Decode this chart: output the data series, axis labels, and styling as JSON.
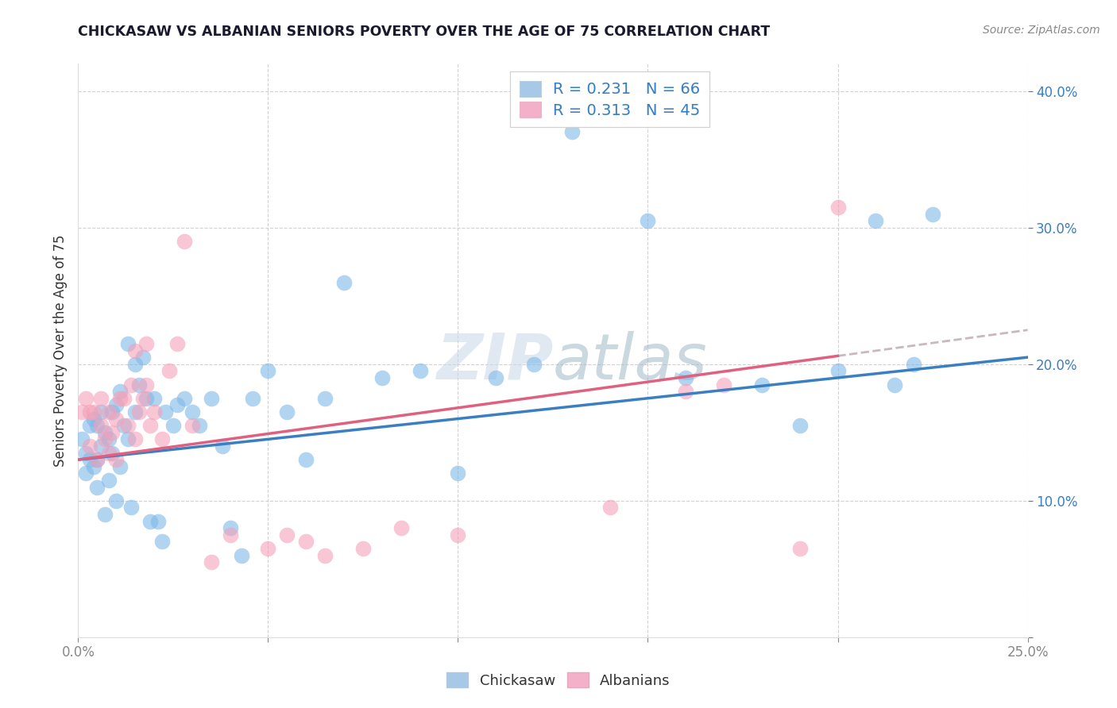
{
  "title": "CHICKASAW VS ALBANIAN SENIORS POVERTY OVER THE AGE OF 75 CORRELATION CHART",
  "source": "Source: ZipAtlas.com",
  "ylabel": "Seniors Poverty Over the Age of 75",
  "watermark": "ZIPatlas",
  "chickasaw_R": 0.231,
  "chickasaw_N": 66,
  "albanian_R": 0.313,
  "albanian_N": 45,
  "chickasaw_color": "#7db8e8",
  "albanian_color": "#f4a0b8",
  "trend_chickasaw_color": "#3a7fc1",
  "trend_albanian_color": "#e06080",
  "trend_dashed_color": "#c8b8c0",
  "xlim": [
    0.0,
    0.25
  ],
  "ylim": [
    0.0,
    0.42
  ],
  "chickasaw_x": [
    0.001,
    0.002,
    0.002,
    0.003,
    0.003,
    0.004,
    0.004,
    0.005,
    0.005,
    0.005,
    0.006,
    0.006,
    0.007,
    0.007,
    0.008,
    0.008,
    0.009,
    0.009,
    0.01,
    0.01,
    0.011,
    0.011,
    0.012,
    0.013,
    0.013,
    0.014,
    0.015,
    0.015,
    0.016,
    0.017,
    0.018,
    0.019,
    0.02,
    0.021,
    0.022,
    0.023,
    0.025,
    0.026,
    0.028,
    0.03,
    0.032,
    0.035,
    0.038,
    0.04,
    0.043,
    0.046,
    0.05,
    0.055,
    0.06,
    0.065,
    0.07,
    0.08,
    0.09,
    0.1,
    0.11,
    0.12,
    0.13,
    0.15,
    0.16,
    0.18,
    0.19,
    0.2,
    0.21,
    0.215,
    0.22,
    0.225
  ],
  "chickasaw_y": [
    0.145,
    0.12,
    0.135,
    0.13,
    0.155,
    0.125,
    0.16,
    0.11,
    0.13,
    0.155,
    0.14,
    0.165,
    0.09,
    0.15,
    0.115,
    0.145,
    0.135,
    0.165,
    0.1,
    0.17,
    0.125,
    0.18,
    0.155,
    0.145,
    0.215,
    0.095,
    0.165,
    0.2,
    0.185,
    0.205,
    0.175,
    0.085,
    0.175,
    0.085,
    0.07,
    0.165,
    0.155,
    0.17,
    0.175,
    0.165,
    0.155,
    0.175,
    0.14,
    0.08,
    0.06,
    0.175,
    0.195,
    0.165,
    0.13,
    0.175,
    0.26,
    0.19,
    0.195,
    0.12,
    0.19,
    0.2,
    0.37,
    0.305,
    0.19,
    0.185,
    0.155,
    0.195,
    0.305,
    0.185,
    0.2,
    0.31
  ],
  "albanian_x": [
    0.001,
    0.002,
    0.003,
    0.003,
    0.004,
    0.005,
    0.006,
    0.006,
    0.007,
    0.008,
    0.008,
    0.009,
    0.01,
    0.01,
    0.011,
    0.012,
    0.013,
    0.014,
    0.015,
    0.015,
    0.016,
    0.017,
    0.018,
    0.018,
    0.019,
    0.02,
    0.022,
    0.024,
    0.026,
    0.028,
    0.03,
    0.035,
    0.04,
    0.05,
    0.055,
    0.06,
    0.065,
    0.075,
    0.085,
    0.1,
    0.14,
    0.16,
    0.17,
    0.19,
    0.2
  ],
  "albanian_y": [
    0.165,
    0.175,
    0.14,
    0.165,
    0.165,
    0.13,
    0.155,
    0.175,
    0.145,
    0.135,
    0.165,
    0.15,
    0.13,
    0.16,
    0.175,
    0.175,
    0.155,
    0.185,
    0.145,
    0.21,
    0.165,
    0.175,
    0.185,
    0.215,
    0.155,
    0.165,
    0.145,
    0.195,
    0.215,
    0.29,
    0.155,
    0.055,
    0.075,
    0.065,
    0.075,
    0.07,
    0.06,
    0.065,
    0.08,
    0.075,
    0.095,
    0.18,
    0.185,
    0.065,
    0.315
  ],
  "trend_c_x0": 0.0,
  "trend_c_y0": 0.13,
  "trend_c_x1": 0.25,
  "trend_c_y1": 0.205,
  "trend_a_x0": 0.0,
  "trend_a_y0": 0.13,
  "trend_a_x1": 0.25,
  "trend_a_y1": 0.225,
  "trend_a_solid_end": 0.2,
  "trend_a_dash_start": 0.2,
  "trend_a_dash_end": 0.25
}
